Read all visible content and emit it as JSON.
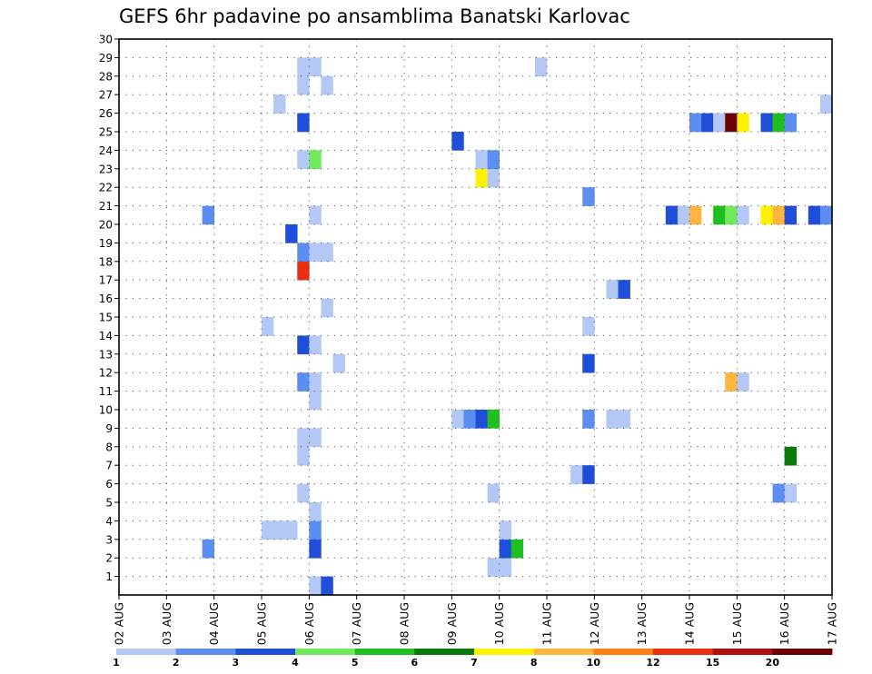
{
  "chart_data": {
    "type": "heatmap",
    "title": "GEFS 6hr padavine po ansamblima Banatski Karlovac",
    "xlabel": "",
    "ylabel": "",
    "x_tick_labels": [
      "02 AUG",
      "03 AUG",
      "04 AUG",
      "05 AUG",
      "06 AUG",
      "07 AUG",
      "08 AUG",
      "09 AUG",
      "10 AUG",
      "11 AUG",
      "12 AUG",
      "13 AUG",
      "14 AUG",
      "15 AUG",
      "16 AUG",
      "17 AUG"
    ],
    "y_tick_labels": [
      "1",
      "2",
      "3",
      "4",
      "5",
      "6",
      "7",
      "8",
      "9",
      "10",
      "11",
      "12",
      "13",
      "14",
      "15",
      "16",
      "17",
      "18",
      "19",
      "20",
      "21",
      "22",
      "23",
      "24",
      "25",
      "26",
      "27",
      "28",
      "29",
      "30"
    ],
    "xlim_days": [
      0,
      15
    ],
    "ylim": [
      0,
      30
    ],
    "grid": true,
    "grid_style": "dotted",
    "time_step_hours": 6,
    "colorbar": {
      "placement": "bottom",
      "labels": [
        "1",
        "2",
        "3",
        "4",
        "5",
        "6",
        "7",
        "8",
        "10",
        "12",
        "15",
        "20"
      ],
      "colors": [
        "#b3c8f5",
        "#5b8ef0",
        "#1f4fd8",
        "#70ea5c",
        "#1fbf1f",
        "#0a7a0a",
        "#fff200",
        "#ffb540",
        "#ff7f10",
        "#e83010",
        "#b01010",
        "#6a0000"
      ]
    },
    "cells": [
      {
        "member": 0,
        "day": 4.0,
        "level": 1
      },
      {
        "member": 0,
        "day": 4.25,
        "level": 3
      },
      {
        "member": 1,
        "day": 7.75,
        "level": 1
      },
      {
        "member": 1,
        "day": 8.0,
        "level": 1
      },
      {
        "member": 2,
        "day": 1.75,
        "level": 2
      },
      {
        "member": 2,
        "day": 4.0,
        "level": 3
      },
      {
        "member": 2,
        "day": 8.0,
        "level": 3
      },
      {
        "member": 2,
        "day": 8.25,
        "level": 5
      },
      {
        "member": 3,
        "day": 3.0,
        "level": 1
      },
      {
        "member": 3,
        "day": 3.25,
        "level": 1
      },
      {
        "member": 3,
        "day": 3.5,
        "level": 1
      },
      {
        "member": 3,
        "day": 4.0,
        "level": 2
      },
      {
        "member": 3,
        "day": 8.0,
        "level": 1
      },
      {
        "member": 4,
        "day": 4.0,
        "level": 1
      },
      {
        "member": 5,
        "day": 3.75,
        "level": 1
      },
      {
        "member": 5,
        "day": 7.75,
        "level": 1
      },
      {
        "member": 5,
        "day": 13.75,
        "level": 2
      },
      {
        "member": 5,
        "day": 14.0,
        "level": 1
      },
      {
        "member": 6,
        "day": 9.5,
        "level": 1
      },
      {
        "member": 6,
        "day": 9.75,
        "level": 3
      },
      {
        "member": 7,
        "day": 3.75,
        "level": 1
      },
      {
        "member": 7,
        "day": 14.0,
        "level": 6
      },
      {
        "member": 8,
        "day": 3.75,
        "level": 1
      },
      {
        "member": 8,
        "day": 4.0,
        "level": 1
      },
      {
        "member": 9,
        "day": 7.0,
        "level": 1
      },
      {
        "member": 9,
        "day": 7.25,
        "level": 2
      },
      {
        "member": 9,
        "day": 7.5,
        "level": 3
      },
      {
        "member": 9,
        "day": 7.75,
        "level": 5
      },
      {
        "member": 9,
        "day": 9.75,
        "level": 2
      },
      {
        "member": 9,
        "day": 10.25,
        "level": 1
      },
      {
        "member": 9,
        "day": 10.5,
        "level": 1
      },
      {
        "member": 10,
        "day": 4.0,
        "level": 1
      },
      {
        "member": 11,
        "day": 3.75,
        "level": 2
      },
      {
        "member": 11,
        "day": 4.0,
        "level": 1
      },
      {
        "member": 11,
        "day": 12.75,
        "level": 8
      },
      {
        "member": 11,
        "day": 13.0,
        "level": 1
      },
      {
        "member": 12,
        "day": 4.5,
        "level": 1
      },
      {
        "member": 12,
        "day": 9.75,
        "level": 3
      },
      {
        "member": 13,
        "day": 3.75,
        "level": 3
      },
      {
        "member": 13,
        "day": 4.0,
        "level": 1
      },
      {
        "member": 14,
        "day": 3.0,
        "level": 1
      },
      {
        "member": 14,
        "day": 9.75,
        "level": 1
      },
      {
        "member": 15,
        "day": 4.25,
        "level": 1
      },
      {
        "member": 16,
        "day": 10.25,
        "level": 1
      },
      {
        "member": 16,
        "day": 10.5,
        "level": 3
      },
      {
        "member": 17,
        "day": 3.75,
        "level": 10
      },
      {
        "member": 18,
        "day": 3.75,
        "level": 2
      },
      {
        "member": 18,
        "day": 4.0,
        "level": 1
      },
      {
        "member": 18,
        "day": 4.25,
        "level": 1
      },
      {
        "member": 19,
        "day": 3.5,
        "level": 3
      },
      {
        "member": 20,
        "day": 1.75,
        "level": 2
      },
      {
        "member": 20,
        "day": 4.0,
        "level": 1
      },
      {
        "member": 20,
        "day": 11.5,
        "level": 3
      },
      {
        "member": 20,
        "day": 11.75,
        "level": 1
      },
      {
        "member": 20,
        "day": 12.0,
        "level": 8
      },
      {
        "member": 20,
        "day": 12.5,
        "level": 5
      },
      {
        "member": 20,
        "day": 12.75,
        "level": 4
      },
      {
        "member": 20,
        "day": 13.0,
        "level": 1
      },
      {
        "member": 20,
        "day": 13.5,
        "level": 7
      },
      {
        "member": 20,
        "day": 13.75,
        "level": 8
      },
      {
        "member": 20,
        "day": 14.0,
        "level": 3
      },
      {
        "member": 20,
        "day": 14.5,
        "level": 3
      },
      {
        "member": 20,
        "day": 14.75,
        "level": 2
      },
      {
        "member": 21,
        "day": 9.75,
        "level": 2
      },
      {
        "member": 22,
        "day": 7.5,
        "level": 7
      },
      {
        "member": 22,
        "day": 7.75,
        "level": 1
      },
      {
        "member": 23,
        "day": 3.75,
        "level": 1
      },
      {
        "member": 23,
        "day": 4.0,
        "level": 4
      },
      {
        "member": 23,
        "day": 7.5,
        "level": 1
      },
      {
        "member": 23,
        "day": 7.75,
        "level": 2
      },
      {
        "member": 24,
        "day": 7.0,
        "level": 3
      },
      {
        "member": 25,
        "day": 3.75,
        "level": 3
      },
      {
        "member": 25,
        "day": 12.0,
        "level": 2
      },
      {
        "member": 25,
        "day": 12.25,
        "level": 3
      },
      {
        "member": 25,
        "day": 12.5,
        "level": 1
      },
      {
        "member": 25,
        "day": 12.75,
        "level": 12
      },
      {
        "member": 25,
        "day": 13.0,
        "level": 7
      },
      {
        "member": 25,
        "day": 13.5,
        "level": 3
      },
      {
        "member": 25,
        "day": 13.75,
        "level": 5
      },
      {
        "member": 25,
        "day": 14.0,
        "level": 2
      },
      {
        "member": 26,
        "day": 3.25,
        "level": 1
      },
      {
        "member": 26,
        "day": 14.75,
        "level": 1
      },
      {
        "member": 27,
        "day": 3.75,
        "level": 1
      },
      {
        "member": 27,
        "day": 4.25,
        "level": 1
      },
      {
        "member": 28,
        "day": 3.75,
        "level": 1
      },
      {
        "member": 28,
        "day": 4.0,
        "level": 1
      },
      {
        "member": 28,
        "day": 8.75,
        "level": 1
      }
    ]
  }
}
